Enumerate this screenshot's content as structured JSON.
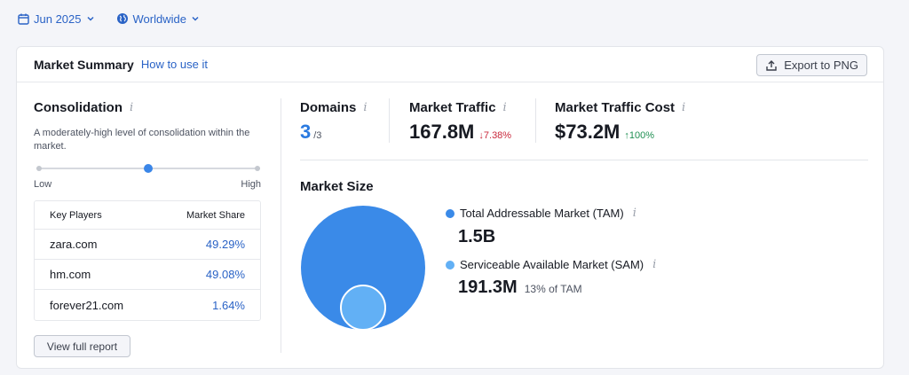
{
  "filters": {
    "date": "Jun 2025",
    "region": "Worldwide",
    "calendar_icon": "calendar-icon",
    "globe_icon": "globe-icon"
  },
  "card": {
    "title": "Market Summary",
    "how_to": "How to use it",
    "export_label": "Export to PNG"
  },
  "consolidation": {
    "title": "Consolidation",
    "info": "i",
    "description": "A moderately-high level of consolidation within the market.",
    "level": 0.5,
    "low_label": "Low",
    "high_label": "High"
  },
  "key_players": {
    "headers": [
      "Key Players",
      "Market Share"
    ],
    "rows": [
      {
        "domain": "zara.com",
        "share": "49.29%"
      },
      {
        "domain": "hm.com",
        "share": "49.08%"
      },
      {
        "domain": "forever21.com",
        "share": "1.64%"
      }
    ],
    "view_button": "View full report"
  },
  "metrics": {
    "domains": {
      "label": "Domains",
      "info": "i",
      "value": "3",
      "total": "/3"
    },
    "traffic": {
      "label": "Market Traffic",
      "info": "i",
      "value": "167.8M",
      "change": "↓7.38%"
    },
    "cost": {
      "label": "Market Traffic Cost",
      "info": "i",
      "value": "$73.2M",
      "change": "↑100%"
    }
  },
  "market_size": {
    "title": "Market Size",
    "tam": {
      "label": "Total Addressable Market (TAM)",
      "info": "i",
      "value": "1.5B",
      "color": "#3a8ae8"
    },
    "sam": {
      "label": "Serviceable Available Market (SAM)",
      "info": "i",
      "value": "191.3M",
      "note": "13% of TAM",
      "color": "#62b0f5"
    }
  },
  "colors": {
    "accent": "#2a63c6",
    "down": "#c9283c",
    "up": "#1f8f52"
  }
}
